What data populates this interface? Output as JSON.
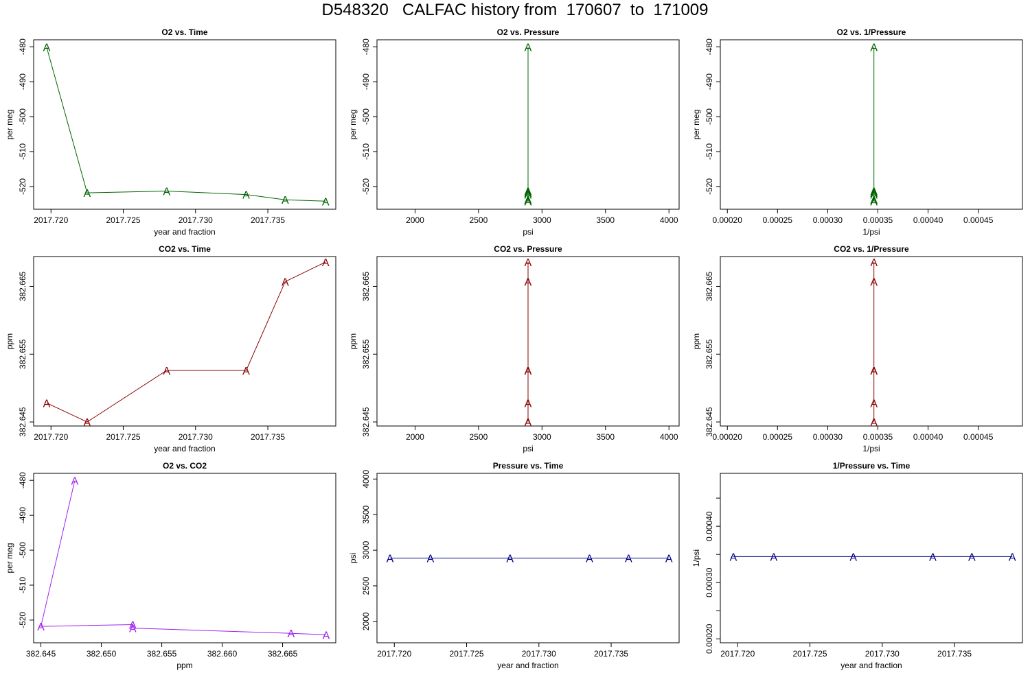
{
  "title": "D548320   CALFAC history from  170607  to  171009",
  "colors": {
    "o2": "#006400",
    "co2": "#8b0000",
    "o2co2": "#a020f0",
    "pressure": "#000080",
    "axis": "#000000"
  },
  "marker_label": "A",
  "chart_data": [
    {
      "type": "line",
      "title": "O2 vs. Time",
      "xlabel": "year and fraction",
      "ylabel": "per meg",
      "color_key": "o2",
      "xlim": [
        2017.7188,
        2017.7397
      ],
      "ylim": [
        -526.5,
        -478
      ],
      "x_ticks": [
        "2017.720",
        "2017.725",
        "2017.730",
        "2017.735"
      ],
      "y_ticks": [
        "-480",
        "-490",
        "-500",
        "-510",
        "-520"
      ],
      "x": [
        2017.7197,
        2017.7225,
        2017.728,
        2017.7335,
        2017.7362,
        2017.739
      ],
      "y": [
        -480.1,
        -521.8,
        -521.3,
        -522.3,
        -523.8,
        -524.2
      ]
    },
    {
      "type": "line",
      "title": "O2 vs. Pressure",
      "xlabel": "psi",
      "ylabel": "per meg",
      "color_key": "o2",
      "xlim": [
        1700,
        4080
      ],
      "ylim": [
        -526.5,
        -478
      ],
      "x_ticks": [
        "2000",
        "2500",
        "3000",
        "3500",
        "4000"
      ],
      "y_ticks": [
        "-480",
        "-490",
        "-500",
        "-510",
        "-520"
      ],
      "x": [
        2890,
        2890,
        2890,
        2890,
        2890,
        2890
      ],
      "y": [
        -480.1,
        -521.8,
        -521.3,
        -522.3,
        -523.8,
        -524.2
      ]
    },
    {
      "type": "line",
      "title": "O2 vs. 1/Pressure",
      "xlabel": "1/psi",
      "ylabel": "per meg",
      "color_key": "o2",
      "xlim": [
        0.000193,
        0.000494
      ],
      "ylim": [
        -526.5,
        -478
      ],
      "x_ticks": [
        "0.00020",
        "0.00025",
        "0.00030",
        "0.00035",
        "0.00040",
        "0.00045"
      ],
      "y_ticks": [
        "-480",
        "-490",
        "-500",
        "-510",
        "-520"
      ],
      "x": [
        0.000346,
        0.000346,
        0.000346,
        0.000346,
        0.000346,
        0.000346
      ],
      "y": [
        -480.1,
        -521.8,
        -521.3,
        -522.3,
        -523.8,
        -524.2
      ]
    },
    {
      "type": "line",
      "title": "CO2 vs. Time",
      "xlabel": "year and fraction",
      "ylabel": "ppm",
      "color_key": "co2",
      "xlim": [
        2017.7188,
        2017.7397
      ],
      "ylim": [
        382.6444,
        382.6694
      ],
      "x_ticks": [
        "2017.720",
        "2017.725",
        "2017.730",
        "2017.735"
      ],
      "y_ticks": [
        "382.645",
        "382.655",
        "382.665"
      ],
      "x": [
        2017.7197,
        2017.7225,
        2017.728,
        2017.7335,
        2017.7362,
        2017.739
      ],
      "y": [
        382.6478,
        382.645,
        382.6526,
        382.6526,
        382.6657,
        382.6686
      ]
    },
    {
      "type": "line",
      "title": "CO2 vs. Pressure",
      "xlabel": "psi",
      "ylabel": "ppm",
      "color_key": "co2",
      "xlim": [
        1700,
        4080
      ],
      "ylim": [
        382.6444,
        382.6694
      ],
      "x_ticks": [
        "2000",
        "2500",
        "3000",
        "3500",
        "4000"
      ],
      "y_ticks": [
        "382.645",
        "382.655",
        "382.665"
      ],
      "x": [
        2890,
        2890,
        2890,
        2890,
        2890,
        2890
      ],
      "y": [
        382.6478,
        382.645,
        382.6526,
        382.6526,
        382.6657,
        382.6686
      ]
    },
    {
      "type": "line",
      "title": "CO2 vs. 1/Pressure",
      "xlabel": "1/psi",
      "ylabel": "ppm",
      "color_key": "co2",
      "xlim": [
        0.000193,
        0.000494
      ],
      "ylim": [
        382.6444,
        382.6694
      ],
      "x_ticks": [
        "0.00020",
        "0.00025",
        "0.00030",
        "0.00035",
        "0.00040",
        "0.00045"
      ],
      "y_ticks": [
        "382.645",
        "382.655",
        "382.665"
      ],
      "x": [
        0.000346,
        0.000346,
        0.000346,
        0.000346,
        0.000346,
        0.000346
      ],
      "y": [
        382.6478,
        382.645,
        382.6526,
        382.6526,
        382.6657,
        382.6686
      ]
    },
    {
      "type": "line",
      "title": "O2 vs. CO2",
      "xlabel": "ppm",
      "ylabel": "per meg",
      "color_key": "o2co2",
      "xlim": [
        382.6444,
        382.6694
      ],
      "ylim": [
        -526.5,
        -478
      ],
      "x_ticks": [
        "382.645",
        "382.650",
        "382.655",
        "382.660",
        "382.665"
      ],
      "y_ticks": [
        "-480",
        "-490",
        "-500",
        "-510",
        "-520"
      ],
      "x": [
        382.645,
        382.6478,
        382.6526,
        382.6526,
        382.6657,
        382.6686
      ],
      "y": [
        -521.8,
        -480.1,
        -521.3,
        -522.3,
        -523.8,
        -524.2
      ],
      "line_order": [
        1,
        0,
        2,
        3,
        4,
        5
      ]
    },
    {
      "type": "line",
      "title": "Pressure vs. Time",
      "xlabel": "year and fraction",
      "ylabel": "psi",
      "color_key": "pressure",
      "xlim": [
        2017.7188,
        2017.7397
      ],
      "ylim": [
        1700,
        4080
      ],
      "x_ticks": [
        "2017.720",
        "2017.725",
        "2017.730",
        "2017.735"
      ],
      "y_ticks": [
        "2000",
        "2500",
        "3000",
        "3500",
        "4000"
      ],
      "x": [
        2017.7197,
        2017.7225,
        2017.728,
        2017.7335,
        2017.7362,
        2017.739
      ],
      "y": [
        2890,
        2890,
        2890,
        2890,
        2890,
        2890
      ]
    },
    {
      "type": "line",
      "title": "1/Pressure vs. Time",
      "xlabel": "year and fraction",
      "ylabel": "1/psi",
      "color_key": "pressure",
      "xlim": [
        2017.7188,
        2017.7397
      ],
      "ylim": [
        0.000193,
        0.000494
      ],
      "x_ticks": [
        "2017.720",
        "2017.725",
        "2017.730",
        "2017.735"
      ],
      "y_ticks": [
        "0.00020",
        "0.00030",
        "0.00040"
      ],
      "y_minor_ticks": [
        0.00025,
        0.00035,
        0.00045
      ],
      "x": [
        2017.7197,
        2017.7225,
        2017.728,
        2017.7335,
        2017.7362,
        2017.739
      ],
      "y": [
        0.000346,
        0.000346,
        0.000346,
        0.000346,
        0.000346,
        0.000346
      ]
    }
  ]
}
